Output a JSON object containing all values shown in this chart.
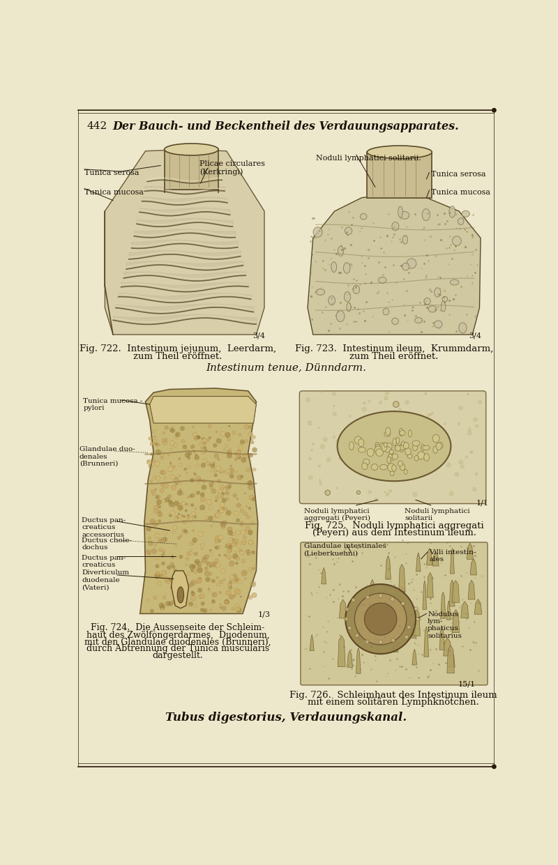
{
  "bg_color": "#ede8cc",
  "text_color": "#1a1008",
  "line_color": "#2a1a08",
  "page_num": "442",
  "header_title": "Der Bauch- und Beckentheil des Verdauungsapparates.",
  "footer_title": "Tubus digestorius, Verdauungskanal.",
  "mid_title": "Intestinum tenue, Dünndarm.",
  "fig722_caption_line1": "Fig. 722.  Intestinum jejunum,  Leerdarm,",
  "fig722_caption_line2": "zum Theil eröffnet.",
  "fig723_caption_line1": "Fig. 723.  Intestinum ileum,  Krummdarm,",
  "fig723_caption_line2": "zum Theil eröffnet.",
  "fig724_caption": "Fig. 724.  Die Aussenseite der Schleim-\nhaut des Zwölfòngerdarmes,  Duodenum,\nmit den Glandulae duodenales (Brunneri),\ndurch Abtrennung der Tunica muscularis\ndargestellt.",
  "fig725_caption_line1": "Fig. 725.  Noduli lymphatici aggregati",
  "fig725_caption_line2": "(Peyeri) aus dem Intestinum ileum.",
  "fig726_caption_line1": "Fig. 726.  Schleimhaut des Intestinum ileum",
  "fig726_caption_line2": "mit einem solitären Lymphknötchen.",
  "label_tunica_serosa_left": "Tunica serosa",
  "label_tunica_mucosa_left": "Tunica mucosa",
  "label_plicae": "Plicae circulares\n(Kerkringi)",
  "label_noduli_solitarii_top": "Noduli lymphatici solitarii.",
  "label_tunica_serosa_right": "Tunica serosa",
  "label_tunica_mucosa_right": "Tunica mucosa",
  "label_tunica_mucosa_pylori": "Tunica mucosa -\npylori",
  "label_glandulae_duo": "Glandulae duo-\ndenales\n(Brunneri)",
  "label_ductus_pan_acc": "Ductus pan-\ncreaticus\naccessorius",
  "label_ductus_chole": "Ductus chole-\ndochus",
  "label_ductus_pan": "Ductus pan-\ncreaticus",
  "label_diverticulum": "Diverticulum\nduodenale\n(Vateri)",
  "label_noduli_aggregati": "Noduli lymphatici\naggregati (Peyeri)",
  "label_noduli_solitarii_bot": "Noduli lymphatici\nsolitarii",
  "label_gland_intestin": "Glandulae intestinales\n(Lieberkuehni)",
  "label_villi": "Villi intestin-\nales",
  "label_nodulus_lym": "Nodulus\nlym-\nphaticus\nsolitarius",
  "scale_34a": "3/4",
  "scale_34b": "3/4",
  "scale_13": "1/3",
  "scale_11": "1/1",
  "scale_15": "15/1"
}
